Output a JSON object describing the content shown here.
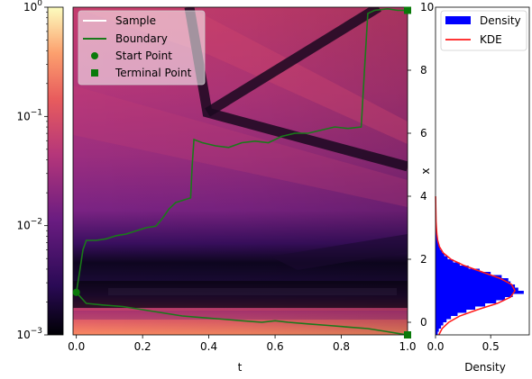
{
  "chart_data": [
    {
      "type": "heatmap",
      "role": "colorbar",
      "scale": "log",
      "ylim": [
        0.001,
        1
      ],
      "ticks": [
        {
          "value": 1,
          "base": "10",
          "exp": "0"
        },
        {
          "value": 0.1,
          "base": "10",
          "exp": "−1"
        },
        {
          "value": 0.01,
          "base": "10",
          "exp": "−2"
        },
        {
          "value": 0.001,
          "base": "10",
          "exp": "−3"
        }
      ],
      "colormap": [
        "#000004",
        "#3b0f70",
        "#8c2981",
        "#de4968",
        "#fe9f6d",
        "#fcfdbf"
      ]
    },
    {
      "type": "line",
      "role": "main",
      "xlabel": "t",
      "ylabel": "x",
      "xlim": [
        -0.01,
        1.0
      ],
      "ylim": [
        -0.4,
        10.0
      ],
      "xticks": [
        0.0,
        0.2,
        0.4,
        0.6,
        0.8,
        1.0
      ],
      "xtick_labels": [
        "0.0",
        "0.2",
        "0.4",
        "0.6",
        "0.8",
        "1.0"
      ],
      "yticks": [
        0,
        2,
        4,
        6,
        8,
        10
      ],
      "ytick_labels": [
        "0",
        "2",
        "4",
        "6",
        "8",
        "10"
      ],
      "legend": {
        "placement": "top-left",
        "entries": [
          {
            "label": "Sample",
            "color": "#ffffff",
            "marker": "line"
          },
          {
            "label": "Boundary",
            "color": "#1a7a1a",
            "marker": "line"
          },
          {
            "label": "Start Point",
            "color": "#0a7a0a",
            "marker": "circle"
          },
          {
            "label": "Terminal Point",
            "color": "#0a7a0a",
            "marker": "square"
          }
        ]
      },
      "start_point": {
        "t": 0.0,
        "x": 0.95
      },
      "terminal_points": [
        {
          "t": 1.0,
          "x": 9.9
        },
        {
          "t": 1.0,
          "x": -0.4
        }
      ],
      "series": [
        {
          "name": "Boundary",
          "color": "#1a7a1a",
          "points": [
            [
              0.0,
              0.95
            ],
            [
              0.01,
              1.6
            ],
            [
              0.02,
              2.3
            ],
            [
              0.03,
              2.6
            ],
            [
              0.06,
              2.6
            ],
            [
              0.09,
              2.65
            ],
            [
              0.12,
              2.75
            ],
            [
              0.15,
              2.8
            ],
            [
              0.18,
              2.9
            ],
            [
              0.21,
              3.0
            ],
            [
              0.24,
              3.05
            ],
            [
              0.26,
              3.3
            ],
            [
              0.28,
              3.6
            ],
            [
              0.3,
              3.8
            ],
            [
              0.33,
              3.9
            ],
            [
              0.345,
              3.95
            ],
            [
              0.35,
              5.0
            ],
            [
              0.355,
              5.8
            ],
            [
              0.38,
              5.7
            ],
            [
              0.42,
              5.6
            ],
            [
              0.46,
              5.55
            ],
            [
              0.5,
              5.7
            ],
            [
              0.54,
              5.75
            ],
            [
              0.58,
              5.7
            ],
            [
              0.62,
              5.9
            ],
            [
              0.66,
              6.0
            ],
            [
              0.7,
              6.0
            ],
            [
              0.74,
              6.1
            ],
            [
              0.78,
              6.2
            ],
            [
              0.82,
              6.15
            ],
            [
              0.86,
              6.2
            ],
            [
              0.87,
              8.0
            ],
            [
              0.88,
              9.8
            ],
            [
              0.9,
              9.9
            ],
            [
              0.94,
              9.95
            ],
            [
              0.97,
              9.9
            ],
            [
              1.0,
              9.9
            ]
          ]
        },
        {
          "name": "Boundary",
          "color": "#1a7a1a",
          "points": [
            [
              0.0,
              0.95
            ],
            [
              0.03,
              0.6
            ],
            [
              0.08,
              0.55
            ],
            [
              0.14,
              0.5
            ],
            [
              0.2,
              0.4
            ],
            [
              0.26,
              0.3
            ],
            [
              0.32,
              0.2
            ],
            [
              0.38,
              0.15
            ],
            [
              0.44,
              0.1
            ],
            [
              0.5,
              0.05
            ],
            [
              0.56,
              0.0
            ],
            [
              0.6,
              0.05
            ],
            [
              0.64,
              0.0
            ],
            [
              0.7,
              -0.05
            ],
            [
              0.76,
              -0.1
            ],
            [
              0.82,
              -0.15
            ],
            [
              0.88,
              -0.2
            ],
            [
              0.94,
              -0.3
            ],
            [
              0.97,
              -0.35
            ],
            [
              1.0,
              -0.4
            ]
          ]
        }
      ]
    },
    {
      "type": "bar",
      "role": "marginal-histogram",
      "xlabel": "Density",
      "xlim": [
        0.0,
        0.85
      ],
      "xticks": [
        0.0,
        0.5
      ],
      "xtick_labels": [
        "0.0",
        "0.5"
      ],
      "legend": {
        "placement": "top-right",
        "entries": [
          {
            "label": "Density",
            "color": "#0000ff",
            "marker": "patch"
          },
          {
            "label": "KDE",
            "color": "#ff0000",
            "marker": "line"
          }
        ]
      },
      "bins": [
        [
          -0.4,
          0.02
        ],
        [
          -0.3,
          0.03
        ],
        [
          -0.2,
          0.05
        ],
        [
          -0.1,
          0.07
        ],
        [
          0.0,
          0.1
        ],
        [
          0.1,
          0.14
        ],
        [
          0.2,
          0.2
        ],
        [
          0.3,
          0.28
        ],
        [
          0.4,
          0.36
        ],
        [
          0.5,
          0.45
        ],
        [
          0.6,
          0.55
        ],
        [
          0.7,
          0.63
        ],
        [
          0.8,
          0.7
        ],
        [
          0.9,
          0.8
        ],
        [
          1.0,
          0.75
        ],
        [
          1.1,
          0.72
        ],
        [
          1.2,
          0.68
        ],
        [
          1.3,
          0.66
        ],
        [
          1.4,
          0.6
        ],
        [
          1.5,
          0.5
        ],
        [
          1.6,
          0.4
        ],
        [
          1.7,
          0.3
        ],
        [
          1.8,
          0.22
        ],
        [
          1.9,
          0.16
        ],
        [
          2.0,
          0.11
        ],
        [
          2.1,
          0.08
        ],
        [
          2.2,
          0.06
        ],
        [
          2.3,
          0.04
        ],
        [
          2.4,
          0.03
        ],
        [
          2.5,
          0.025
        ],
        [
          2.6,
          0.02
        ],
        [
          2.7,
          0.015
        ],
        [
          2.8,
          0.012
        ],
        [
          2.9,
          0.01
        ],
        [
          3.0,
          0.008
        ],
        [
          3.1,
          0.006
        ],
        [
          3.2,
          0.005
        ],
        [
          3.3,
          0.004
        ],
        [
          3.4,
          0.003
        ],
        [
          3.5,
          0.002
        ]
      ],
      "kde": [
        [
          -0.4,
          0.03
        ],
        [
          -0.2,
          0.06
        ],
        [
          0.0,
          0.12
        ],
        [
          0.2,
          0.22
        ],
        [
          0.4,
          0.38
        ],
        [
          0.6,
          0.56
        ],
        [
          0.8,
          0.68
        ],
        [
          1.0,
          0.72
        ],
        [
          1.2,
          0.69
        ],
        [
          1.4,
          0.58
        ],
        [
          1.6,
          0.42
        ],
        [
          1.8,
          0.26
        ],
        [
          2.0,
          0.14
        ],
        [
          2.2,
          0.07
        ],
        [
          2.4,
          0.035
        ],
        [
          2.6,
          0.02
        ],
        [
          2.8,
          0.012
        ],
        [
          3.0,
          0.008
        ],
        [
          3.2,
          0.005
        ],
        [
          3.5,
          0.003
        ],
        [
          4.0,
          0.001
        ]
      ]
    }
  ]
}
